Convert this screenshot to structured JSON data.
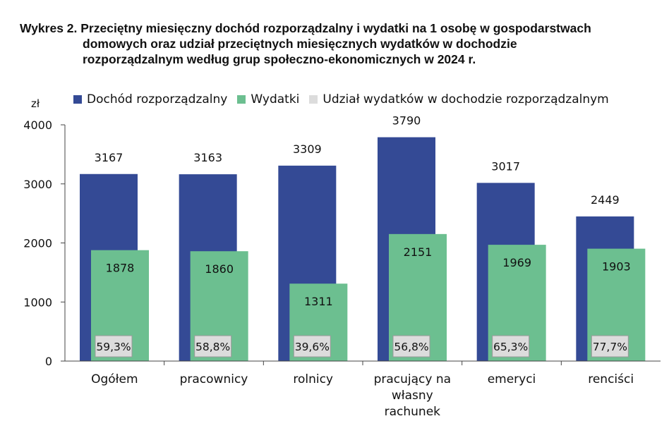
{
  "title": {
    "line1": "Wykres 2. Przeciętny miesięczny dochód rozporządzalny i wydatki na 1 osobę w gospodarstwach",
    "line2": "domowych oraz udział przeciętnych miesięcznych wydatków w dochodzie",
    "line3": "rozporządzalnym według grup społeczno-ekonomicznych w 2024 r."
  },
  "colors": {
    "income": "#344a95",
    "expenses": "#6cbf90",
    "share": "#dcdcdc"
  },
  "chart_data": {
    "type": "bar",
    "ylabel": "zł",
    "ylim": [
      0,
      4000
    ],
    "yticks": [
      "0",
      "1000",
      "2000",
      "3000",
      "4000"
    ],
    "categories": [
      [
        "Ogółem"
      ],
      [
        "pracownicy"
      ],
      [
        "rolnicy"
      ],
      [
        "pracujący na",
        "własny",
        "rachunek"
      ],
      [
        "emeryci"
      ],
      [
        "renciści"
      ]
    ],
    "series": [
      {
        "name": "Dochód rozporządzalny",
        "values": [
          3167,
          3163,
          3309,
          3790,
          3017,
          2449
        ]
      },
      {
        "name": "Wydatki",
        "values": [
          1878,
          1860,
          1311,
          2151,
          1969,
          1903
        ]
      },
      {
        "name": "Udział wydatków w dochodzie rozporządzalnym",
        "labels": [
          "59,3%",
          "58,8%",
          "39,6%",
          "56,8%",
          "65,3%",
          "77,7%"
        ]
      }
    ]
  }
}
